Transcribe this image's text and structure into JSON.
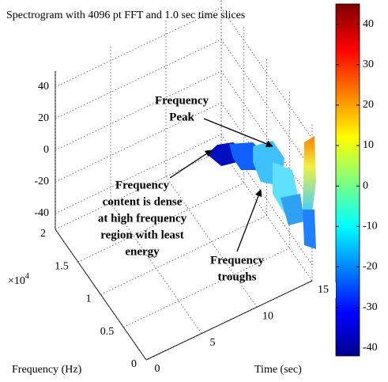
{
  "chart_data": {
    "type": "surface3d",
    "title": "Spectrogram with 4096 pt FFT and 1.0 sec time slices",
    "x_label": "Time (sec)",
    "y_label": "Frequency (Hz)",
    "y_multiplier": {
      "base": "×10",
      "exponent": "4"
    },
    "xlim": [
      0,
      15
    ],
    "xticks": [
      0,
      5,
      10,
      15
    ],
    "ylim": [
      0,
      2
    ],
    "yticks": [
      0,
      0.5,
      1,
      1.5,
      2
    ],
    "zlim": [
      -50,
      50
    ],
    "zticks": [
      -40,
      -20,
      0,
      20,
      40
    ],
    "grid": true,
    "colorbar": {
      "clim": [
        -42,
        45
      ],
      "ticks": [
        -40,
        -30,
        -20,
        -10,
        0,
        10,
        20,
        30,
        40
      ]
    },
    "annotations": [
      {
        "lines": [
          "Frequency",
          "Peak"
        ]
      },
      {
        "lines": [
          "Frequency",
          "content is dense",
          "at high frequency",
          "region with least",
          "energy"
        ]
      },
      {
        "lines": [
          "Frequency",
          "troughs"
        ]
      }
    ]
  }
}
